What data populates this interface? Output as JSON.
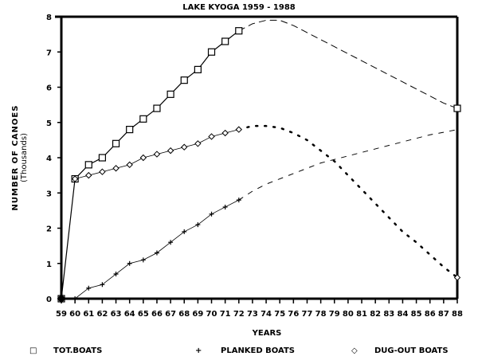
{
  "chart_data": {
    "type": "line",
    "title": "LAKE KYOGA 1959 - 1988",
    "xlabel": "YEARS",
    "ylabel": "NUMBER OF CANOES",
    "ylabel_sub": "(Thousands)",
    "xlim": [
      59,
      88
    ],
    "ylim": [
      0,
      8
    ],
    "x_ticks": [
      59,
      60,
      61,
      62,
      63,
      64,
      65,
      66,
      67,
      68,
      69,
      70,
      71,
      72,
      73,
      74,
      75,
      76,
      77,
      78,
      79,
      80,
      81,
      82,
      83,
      84,
      85,
      86,
      87,
      88
    ],
    "y_ticks": [
      0,
      1,
      2,
      3,
      4,
      5,
      6,
      7,
      8
    ],
    "grid": false,
    "legend_position": "bottom",
    "series": [
      {
        "name": "TOT.BOATS",
        "marker": "square",
        "x": [
          59,
          60,
          61,
          62,
          63,
          64,
          65,
          66,
          67,
          68,
          69,
          70,
          71,
          72
        ],
        "values": [
          0,
          3.4,
          3.8,
          4.0,
          4.4,
          4.8,
          5.1,
          5.4,
          5.8,
          6.2,
          6.5,
          7.0,
          7.3,
          7.6
        ],
        "projection": {
          "style": "dashed",
          "x": [
            72,
            73,
            74,
            75,
            76,
            77,
            78,
            79,
            80,
            81,
            82,
            83,
            84,
            85,
            86,
            87,
            88
          ],
          "values": [
            7.6,
            7.8,
            7.9,
            7.9,
            7.75,
            7.55,
            7.35,
            7.15,
            6.95,
            6.75,
            6.55,
            6.35,
            6.15,
            5.95,
            5.75,
            5.55,
            5.4
          ]
        }
      },
      {
        "name": "PLANKED BOATS",
        "marker": "plus",
        "x": [
          59,
          60,
          61,
          62,
          63,
          64,
          65,
          66,
          67,
          68,
          69,
          70,
          71,
          72
        ],
        "values": [
          0,
          0,
          0.3,
          0.4,
          0.7,
          1.0,
          1.1,
          1.3,
          1.6,
          1.9,
          2.1,
          2.4,
          2.6,
          2.8
        ],
        "projection": {
          "style": "plus-dashed",
          "x": [
            72,
            73,
            74,
            75,
            76,
            77,
            78,
            79,
            80,
            81,
            82,
            83,
            84,
            85,
            86,
            87,
            88
          ],
          "values": [
            2.8,
            3.05,
            3.25,
            3.4,
            3.55,
            3.7,
            3.85,
            3.95,
            4.05,
            4.15,
            4.25,
            4.35,
            4.45,
            4.55,
            4.65,
            4.72,
            4.8
          ]
        }
      },
      {
        "name": "DUG-OUT BOATS",
        "marker": "diamond",
        "x": [
          60,
          61,
          62,
          63,
          64,
          65,
          66,
          67,
          68,
          69,
          70,
          71,
          72
        ],
        "values": [
          3.4,
          3.5,
          3.6,
          3.7,
          3.8,
          4.0,
          4.1,
          4.2,
          4.3,
          4.4,
          4.6,
          4.7,
          4.8
        ],
        "projection": {
          "style": "dotted",
          "x": [
            72,
            73,
            74,
            75,
            76,
            77,
            78,
            79,
            80,
            81,
            82,
            83,
            84,
            85,
            86,
            87,
            88
          ],
          "values": [
            4.8,
            4.9,
            4.9,
            4.85,
            4.7,
            4.5,
            4.2,
            3.9,
            3.5,
            3.1,
            2.7,
            2.3,
            1.9,
            1.6,
            1.25,
            0.9,
            0.6
          ]
        }
      }
    ],
    "legend": [
      {
        "symbol": "□",
        "label": "TOT.BOATS"
      },
      {
        "symbol": "+",
        "label": "PLANKED BOATS"
      },
      {
        "symbol": "◇",
        "label": "DUG-OUT BOATS"
      }
    ]
  }
}
